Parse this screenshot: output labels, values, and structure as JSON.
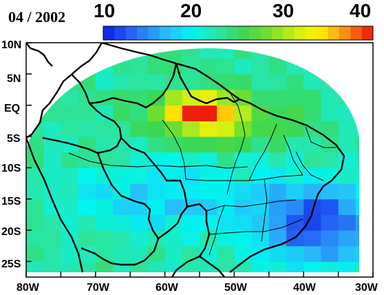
{
  "map": {
    "date": "04 / 2002",
    "colorbar": {
      "ticks": [
        "10",
        "20",
        "30",
        "40"
      ],
      "min": 10,
      "max": 40
    },
    "lat_labels": [
      "10N",
      "5N",
      "EQ",
      "5S",
      "10S",
      "15S",
      "20S",
      "25S"
    ],
    "lon_labels": [
      "80W",
      "70W",
      "60W",
      "50W",
      "40W",
      "30W"
    ],
    "extent": {
      "lon_min": -80,
      "lon_max": -30,
      "lat_min": -27.5,
      "lat_max": 10
    },
    "grid_cell_deg": 2.5
  }
}
